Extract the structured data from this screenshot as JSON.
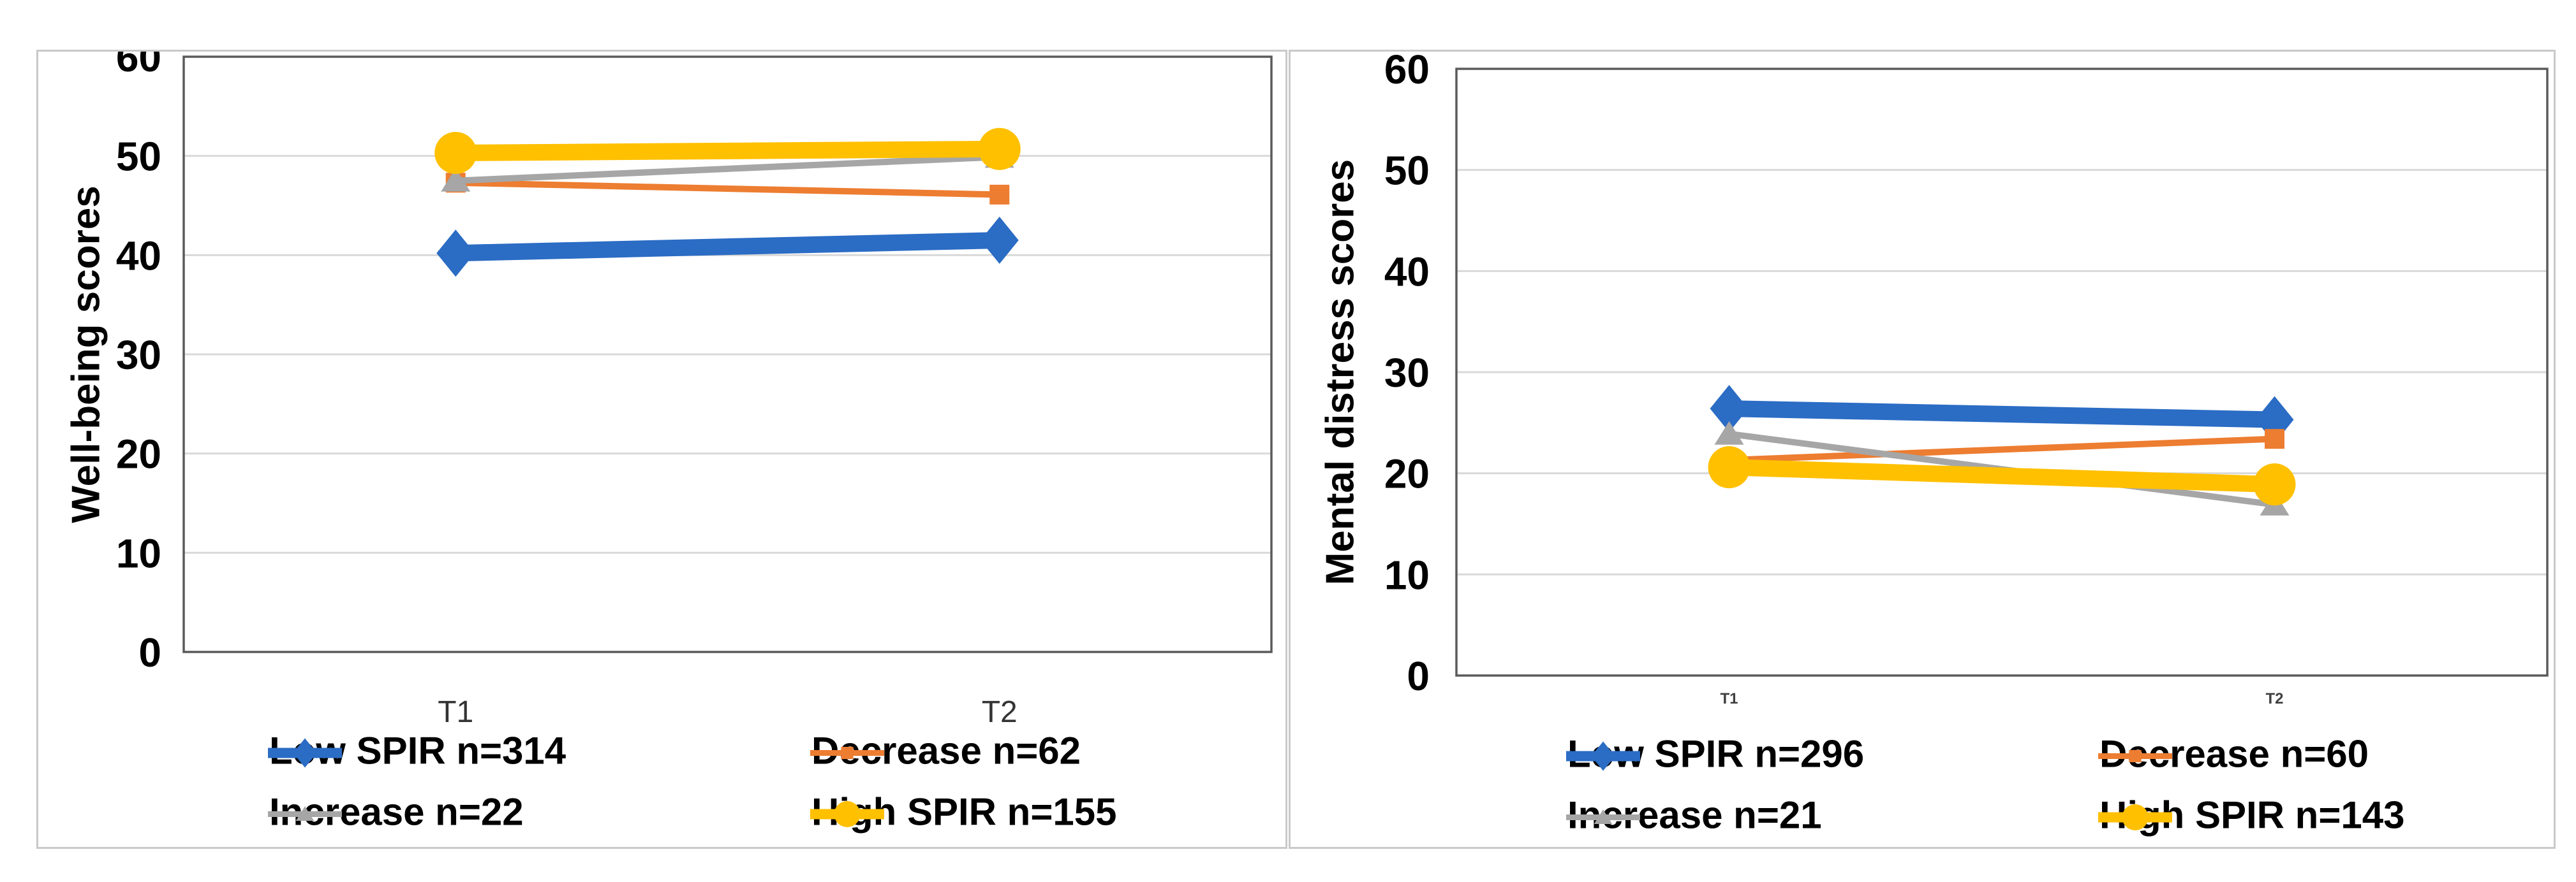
{
  "figure": {
    "background": "#FFFFFF",
    "panel_border_color": "#C9C9C9",
    "grid_color": "#D9D9D9",
    "axis_color": "#5A5A5A",
    "tick_text_color": "#000000"
  },
  "chart_data": [
    {
      "type": "line",
      "title": "",
      "ylabel": "Well-being scores",
      "xlabel": "",
      "categories": [
        "T1",
        "T2"
      ],
      "ylim": [
        0,
        60
      ],
      "yticks": [
        "0",
        "10",
        "20",
        "30",
        "40",
        "50",
        "60"
      ],
      "grid": true,
      "legend_position": "bottom",
      "series": [
        {
          "name": "Low SPIR n=314",
          "color": "#2B6CC4",
          "marker": "diamond",
          "weight": "thick",
          "values": [
            40.2,
            41.5
          ]
        },
        {
          "name": "Decrease n=62",
          "color": "#ED7D31",
          "marker": "square",
          "weight": "thin",
          "values": [
            47.3,
            46.1
          ]
        },
        {
          "name": "Increase n=22",
          "color": "#A6A6A6",
          "marker": "triangle",
          "weight": "thin",
          "values": [
            47.5,
            49.9
          ]
        },
        {
          "name": "High SPIR n=155",
          "color": "#FFC000",
          "marker": "circle",
          "weight": "thick",
          "values": [
            50.3,
            50.7
          ]
        }
      ]
    },
    {
      "type": "line",
      "title": "",
      "ylabel": "Mental distress scores",
      "xlabel": "",
      "categories": [
        "T1",
        "T2"
      ],
      "ylim": [
        0,
        60
      ],
      "yticks": [
        "0",
        "10",
        "20",
        "30",
        "40",
        "50",
        "60"
      ],
      "grid": true,
      "legend_position": "bottom",
      "series": [
        {
          "name": "Low SPIR n=296",
          "color": "#2B6CC4",
          "marker": "diamond",
          "weight": "thick",
          "values": [
            26.4,
            25.3
          ]
        },
        {
          "name": "Decrease n=60",
          "color": "#ED7D31",
          "marker": "square",
          "weight": "thin",
          "values": [
            21.3,
            23.4
          ]
        },
        {
          "name": "Increase n=21",
          "color": "#A6A6A6",
          "marker": "triangle",
          "weight": "thin",
          "values": [
            23.9,
            16.9
          ]
        },
        {
          "name": "High SPIR n=143",
          "color": "#FFC000",
          "marker": "circle",
          "weight": "thick",
          "values": [
            20.6,
            18.9
          ]
        }
      ]
    }
  ]
}
